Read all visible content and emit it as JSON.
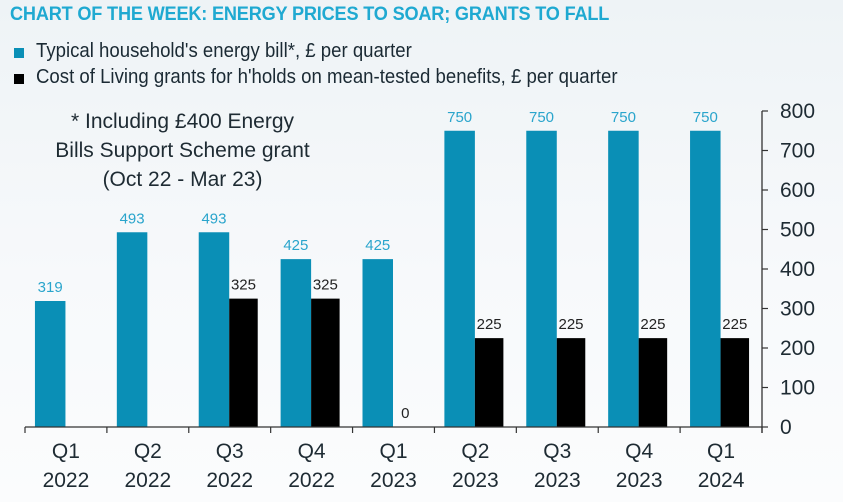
{
  "chart_data": {
    "type": "bar",
    "title": "CHART OF THE WEEK: ENERGY PRICES TO SOAR; GRANTS TO FALL",
    "note": [
      "* Including £400 Energy",
      "Bills Support Scheme grant",
      "(Oct 22 - Mar 23)"
    ],
    "categories": [
      [
        "Q1",
        "2022"
      ],
      [
        "Q2",
        "2022"
      ],
      [
        "Q3",
        "2022"
      ],
      [
        "Q4",
        "2022"
      ],
      [
        "Q1",
        "2023"
      ],
      [
        "Q2",
        "2023"
      ],
      [
        "Q3",
        "2023"
      ],
      [
        "Q4",
        "2023"
      ],
      [
        "Q1",
        "2024"
      ]
    ],
    "series": [
      {
        "name": "Typical household's energy bill*, £ per quarter",
        "color": "#0a8fb6",
        "label_color": "#2aa5cc",
        "values": [
          319,
          493,
          493,
          425,
          425,
          750,
          750,
          750,
          750
        ]
      },
      {
        "name": "Cost of Living grants for h'holds on mean-tested benefits, £ per quarter",
        "color": "#000000",
        "label_color": "#222222",
        "values": [
          null,
          null,
          325,
          325,
          0,
          225,
          225,
          225,
          225
        ]
      }
    ],
    "xlabel": "",
    "ylabel": "",
    "ylim": [
      0,
      800
    ],
    "yticks": [
      0,
      100,
      200,
      300,
      400,
      500,
      600,
      700,
      800
    ],
    "y_axis_side": "right",
    "grid": false,
    "legend_position": "top-left"
  }
}
